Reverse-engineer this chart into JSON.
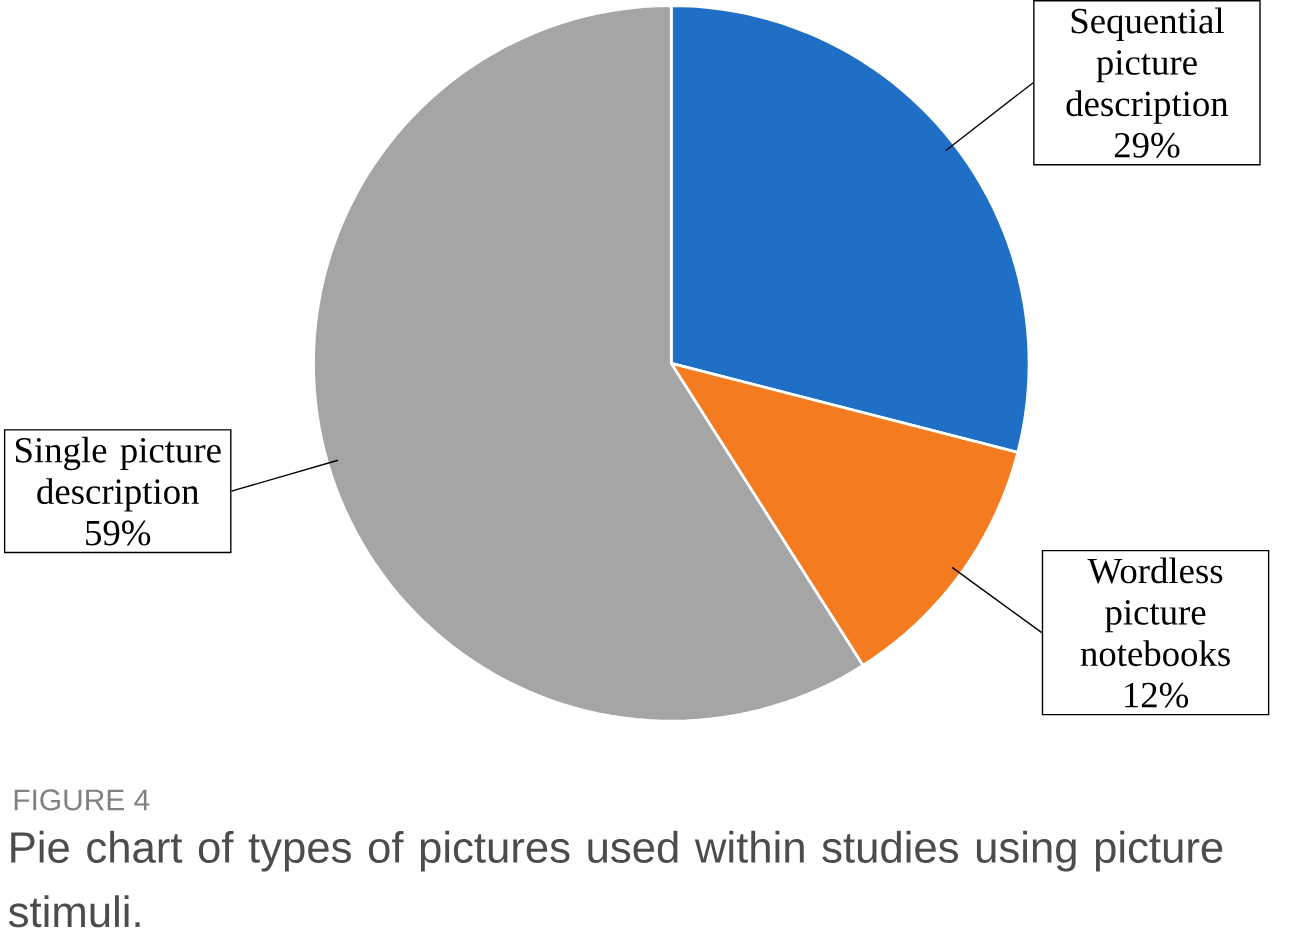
{
  "chart_data": {
    "type": "pie",
    "categories": [
      "Sequential picture description",
      "Wordless picture notebooks",
      "Single picture description"
    ],
    "values": [
      29,
      12,
      59
    ],
    "value_labels": [
      "29%",
      "12%",
      "59%"
    ],
    "colors": [
      "#1f6fc6",
      "#f47b20",
      "#a5a5a5"
    ],
    "annotations": [
      "FIGURE 4",
      "Pie chart of types of pictures used within studies using picture stimuli."
    ]
  }
}
